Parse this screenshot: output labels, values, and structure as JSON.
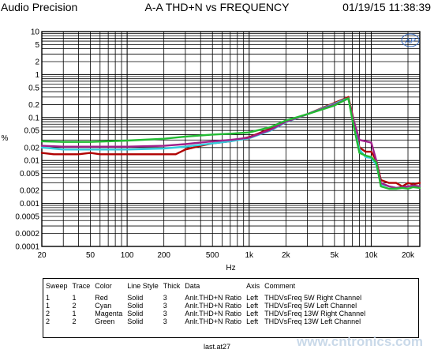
{
  "header": {
    "left": "Audio Precision",
    "center": "A-A THD+N vs FREQUENCY",
    "right": "01/19/15 11:38:39"
  },
  "logo_text": "AP",
  "chart_data": {
    "type": "line",
    "title": "A-A THD+N vs FREQUENCY",
    "xlabel": "Hz",
    "ylabel": "%",
    "x_scale": "log",
    "y_scale": "log",
    "xlim": [
      20,
      25000
    ],
    "ylim": [
      0.0001,
      10
    ],
    "grid": true,
    "x_ticks": [
      "20",
      "50",
      "100",
      "200",
      "500",
      "1k",
      "2k",
      "5k",
      "10k",
      "20k"
    ],
    "y_ticks": [
      "10",
      "5",
      "2",
      "1",
      "0.5",
      "0.2",
      "0.1",
      "0.05",
      "0.02",
      "0.01",
      "0.005",
      "0.002",
      "0.001",
      "0.0005",
      "0.0002",
      "0.0001"
    ],
    "series": [
      {
        "name": "THDVsFreq 5W Right Channel",
        "color": "#b00000",
        "x": [
          20,
          25,
          30,
          35,
          40,
          50,
          60,
          80,
          100,
          150,
          200,
          250,
          300,
          400,
          500,
          700,
          1000,
          1500,
          2000,
          3000,
          5000,
          6000,
          6500,
          7000,
          8000,
          9000,
          10000,
          11000,
          12000,
          14000,
          16000,
          18000,
          20000,
          22000,
          25000
        ],
        "y": [
          0.015,
          0.014,
          0.014,
          0.014,
          0.014,
          0.015,
          0.014,
          0.014,
          0.014,
          0.014,
          0.014,
          0.014,
          0.018,
          0.022,
          0.025,
          0.028,
          0.035,
          0.055,
          0.08,
          0.12,
          0.22,
          0.27,
          0.3,
          0.12,
          0.02,
          0.016,
          0.016,
          0.01,
          0.0035,
          0.003,
          0.003,
          0.0025,
          0.003,
          0.0028,
          0.003
        ]
      },
      {
        "name": "THDVsFreq 5W Left Channel",
        "color": "#33ccdd",
        "x": [
          20,
          30,
          50,
          100,
          200,
          300,
          500,
          700,
          1000,
          1500,
          2000,
          3000,
          5000,
          6000,
          6500,
          7000,
          8000,
          9000,
          10000,
          11000,
          12000,
          14000,
          16000,
          18000,
          20000,
          22000,
          25000
        ],
        "y": [
          0.02,
          0.018,
          0.018,
          0.018,
          0.019,
          0.021,
          0.025,
          0.028,
          0.033,
          0.05,
          0.078,
          0.12,
          0.21,
          0.26,
          0.28,
          0.1,
          0.018,
          0.012,
          0.0115,
          0.008,
          0.0028,
          0.0025,
          0.0023,
          0.0024,
          0.0025,
          0.0026,
          0.0025
        ]
      },
      {
        "name": "THDVsFreq 13W Right Channel",
        "color": "#a0208a",
        "x": [
          20,
          30,
          50,
          100,
          200,
          300,
          500,
          700,
          1000,
          1500,
          2000,
          3000,
          5000,
          6000,
          6500,
          7000,
          8000,
          9000,
          10000,
          11000,
          12000,
          14000,
          16000,
          18000,
          20000,
          22000,
          25000
        ],
        "y": [
          0.022,
          0.021,
          0.021,
          0.021,
          0.022,
          0.024,
          0.028,
          0.03,
          0.034,
          0.052,
          0.08,
          0.12,
          0.2,
          0.25,
          0.28,
          0.11,
          0.03,
          0.028,
          0.026,
          0.01,
          0.003,
          0.0025,
          0.0023,
          0.0024,
          0.0025,
          0.0026,
          0.0025
        ]
      },
      {
        "name": "THDVsFreq 13W Left Channel",
        "color": "#22bb33",
        "x": [
          20,
          30,
          50,
          100,
          200,
          300,
          500,
          700,
          1000,
          1500,
          2000,
          3000,
          5000,
          6000,
          6500,
          7000,
          8000,
          9000,
          10000,
          11000,
          12000,
          14000,
          16000,
          18000,
          20000,
          22000,
          25000
        ],
        "y": [
          0.028,
          0.027,
          0.027,
          0.029,
          0.032,
          0.036,
          0.04,
          0.042,
          0.045,
          0.06,
          0.085,
          0.12,
          0.19,
          0.25,
          0.28,
          0.09,
          0.015,
          0.013,
          0.012,
          0.009,
          0.0025,
          0.0022,
          0.0022,
          0.0023,
          0.0022,
          0.0024,
          0.0023
        ]
      }
    ]
  },
  "legend": {
    "headers": [
      "Sweep",
      "Trace",
      "Color",
      "Line Style",
      "Thick",
      "Data",
      "Axis",
      "Comment"
    ],
    "rows": [
      [
        "1",
        "1",
        "Red",
        "Solid",
        "3",
        "Anlr.THD+N Ratio",
        "Left",
        "THDVsFreq 5W Right Channel"
      ],
      [
        "1",
        "2",
        "Cyan",
        "Solid",
        "3",
        "Anlr.THD+N Ratio",
        "Left",
        "THDVsFreq 5W Left Channel"
      ],
      [
        "2",
        "1",
        "Magenta",
        "Solid",
        "3",
        "Anlr.THD+N Ratio",
        "Left",
        "THDVsFreq 13W Right Channel"
      ],
      [
        "2",
        "2",
        "Green",
        "Solid",
        "3",
        "Anlr.THD+N Ratio",
        "Left",
        "THDVsFreq 13W Left Channel"
      ]
    ]
  },
  "footer": "last.at27",
  "watermark": "www.cntronics.com"
}
